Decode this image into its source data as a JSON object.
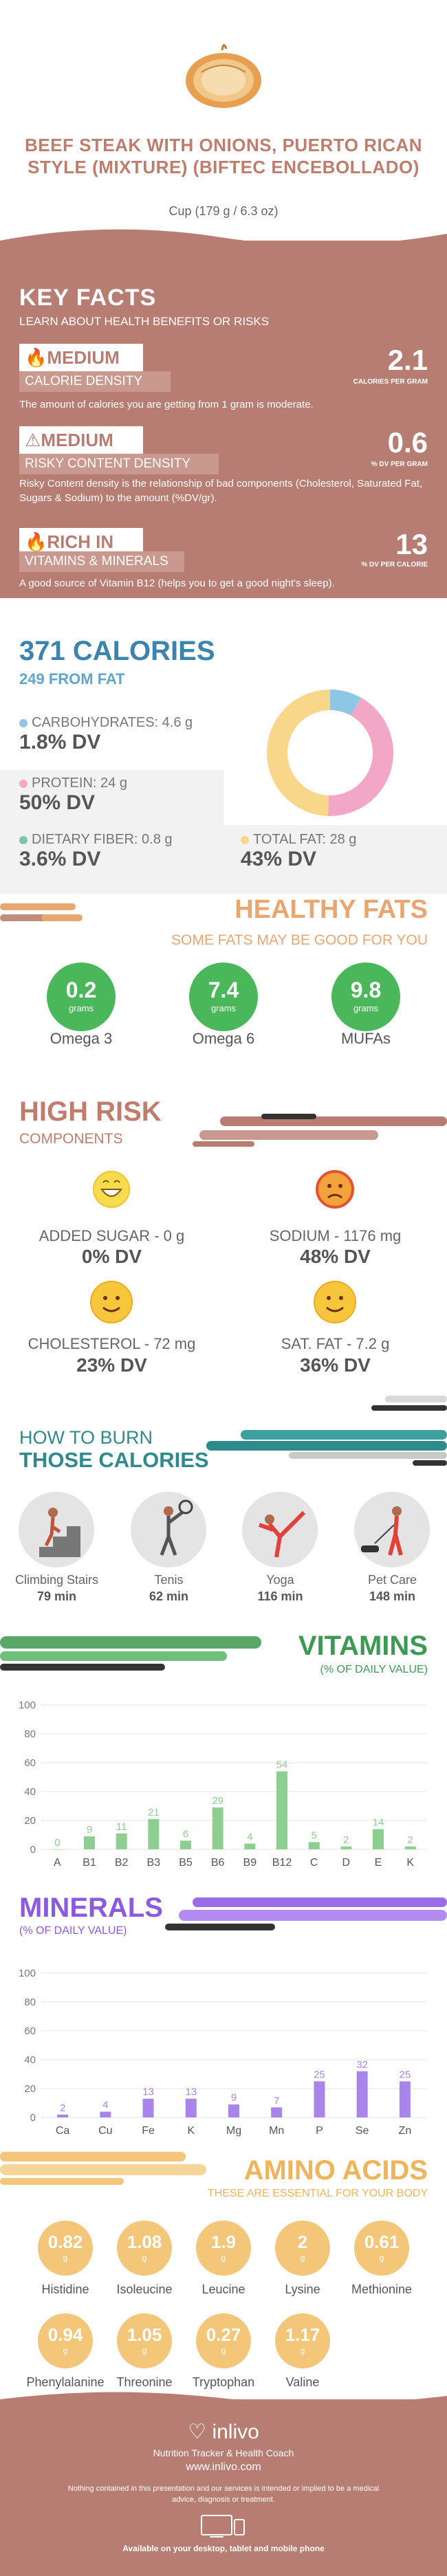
{
  "header": {
    "title": "BEEF STEAK WITH ONIONS, PUERTO RICAN STYLE (MIXTURE) (BIFTEC ENCEBOLLADO)",
    "serving": "Cup (179 g / 6.3 oz)"
  },
  "key_facts": {
    "heading": "KEY FACTS",
    "subheading": "LEARN ABOUT HEALTH BENEFITS OR RISKS",
    "items": [
      {
        "level": "MEDIUM",
        "label": "CALORIE DENSITY",
        "value": "2.1",
        "unit": "CALORIES PER GRAM",
        "desc": "The amount of calories you are getting from 1 gram is moderate."
      },
      {
        "level": "MEDIUM",
        "label": "RISKY CONTENT DENSITY",
        "value": "0.6",
        "unit": "% DV PER GRAM",
        "desc": "Risky Content density is the relationship of bad components (Cholesterol, Saturated Fat, Sugars & Sodium) to the amount (%DV/gr)."
      },
      {
        "level": "RICH  IN",
        "label": "VITAMINS & MINERALS",
        "value": "13",
        "unit": "% DV PER CALORIE",
        "desc": "A good source of Vitamin B12 (helps you to get a good night's sleep)."
      }
    ]
  },
  "calories": {
    "title": "371 CALORIES",
    "from_fat": "249 FROM FAT",
    "carbs": {
      "label": "CARBOHYDRATES: 4.6 g",
      "dv": "1.8% DV",
      "color": "#8ec6e6"
    },
    "protein": {
      "label": "PROTEIN: 24 g",
      "dv": "50% DV",
      "color": "#f3a7c7"
    },
    "fiber": {
      "label": "DIETARY FIBER: 0.8 g",
      "dv": "3.6% DV",
      "color": "#7fc4a4"
    },
    "fat": {
      "label": "TOTAL FAT: 28 g",
      "dv": "43% DV",
      "color": "#f8d68a"
    },
    "donut": [
      {
        "name": "carbohydrates",
        "value": 4.6,
        "color": "#8ec6e6"
      },
      {
        "name": "protein",
        "value": 24,
        "color": "#f3a7c7"
      },
      {
        "name": "fat",
        "value": 28,
        "color": "#f8d68a"
      }
    ]
  },
  "healthy_fats": {
    "title": "HEALTHY FATS",
    "subtitle": "SOME FATS MAY BE GOOD FOR YOU",
    "items": [
      {
        "value": "0.2",
        "unit": "grams",
        "label": "Omega 3"
      },
      {
        "value": "7.4",
        "unit": "grams",
        "label": "Omega 6"
      },
      {
        "value": "9.8",
        "unit": "grams",
        "label": "MUFAs"
      }
    ]
  },
  "high_risk": {
    "title": "HIGH RISK",
    "subtitle": "COMPONENTS",
    "items": [
      {
        "label": "ADDED SUGAR - 0 g",
        "dv": "0% DV",
        "mood": "happy",
        "color": "#f7dc4f"
      },
      {
        "label": "SODIUM - 1176 mg",
        "dv": "48% DV",
        "mood": "sad",
        "color": "#f15a3a"
      },
      {
        "label": "CHOLESTEROL - 72 mg",
        "dv": "23% DV",
        "mood": "smile",
        "color": "#f7c63a"
      },
      {
        "label": "SAT. FAT - 7.2 g",
        "dv": "36% DV",
        "mood": "smile",
        "color": "#f7c63a"
      }
    ]
  },
  "burn": {
    "title1": "HOW TO BURN",
    "title2": "THOSE CALORIES",
    "items": [
      {
        "label": "Climbing Stairs",
        "value": "79 min"
      },
      {
        "label": "Tenis",
        "value": "62 min"
      },
      {
        "label": "Yoga",
        "value": "116 min"
      },
      {
        "label": "Pet Care",
        "value": "148 min"
      }
    ]
  },
  "vitamins": {
    "title": "VITAMINS",
    "subtitle": "(% OF DAILY VALUE)"
  },
  "minerals": {
    "title": "MINERALS",
    "subtitle": "(% OF DAILY VALUE)"
  },
  "amino": {
    "title": "AMINO ACIDS",
    "subtitle": "THESE ARE ESSENTIAL FOR YOUR BODY",
    "items": [
      {
        "value": "0.82",
        "unit": "g",
        "label": "Histidine"
      },
      {
        "value": "1.08",
        "unit": "g",
        "label": "Isoleucine"
      },
      {
        "value": "1.9",
        "unit": "g",
        "label": "Leucine"
      },
      {
        "value": "2",
        "unit": "g",
        "label": "Lysine"
      },
      {
        "value": "0.61",
        "unit": "g",
        "label": "Methionine"
      },
      {
        "value": "0.94",
        "unit": "g",
        "label": "Phenylalanine"
      },
      {
        "value": "1.05",
        "unit": "g",
        "label": "Threonine"
      },
      {
        "value": "0.27",
        "unit": "g",
        "label": "Tryptophan"
      },
      {
        "value": "1.17",
        "unit": "g",
        "label": "Valine"
      }
    ]
  },
  "footer": {
    "brand": "inlivo",
    "tagline": "Nutrition Tracker & Health Coach",
    "url": "www.inlivo.com",
    "disclaimer": "Nothing contained in this presentation and our services is intended or implied to be a medical advice, diagnosis or treatment.",
    "devices": "Available on your desktop, tablet and mobile phone"
  },
  "chart_data": [
    {
      "type": "bar",
      "title": "VITAMINS",
      "categories": [
        "A",
        "B1",
        "B2",
        "B3",
        "B5",
        "B6",
        "B9",
        "B12",
        "C",
        "D",
        "E",
        "K"
      ],
      "values": [
        0,
        9,
        11,
        21,
        6,
        29,
        4,
        54,
        5,
        2,
        14,
        2
      ],
      "ylim": [
        0,
        100
      ],
      "yticks": [
        0,
        20,
        40,
        60,
        80,
        100
      ],
      "color": "#8ecf91",
      "grid": true
    },
    {
      "type": "bar",
      "title": "MINERALS",
      "categories": [
        "Ca",
        "Cu",
        "Fe",
        "K",
        "Mg",
        "Mn",
        "P",
        "Se",
        "Zn"
      ],
      "values": [
        2,
        4,
        13,
        13,
        9,
        7,
        25,
        32,
        25
      ],
      "ylim": [
        0,
        100
      ],
      "yticks": [
        0,
        20,
        40,
        60,
        80,
        100
      ],
      "color": "#a984ea",
      "grid": true
    }
  ]
}
